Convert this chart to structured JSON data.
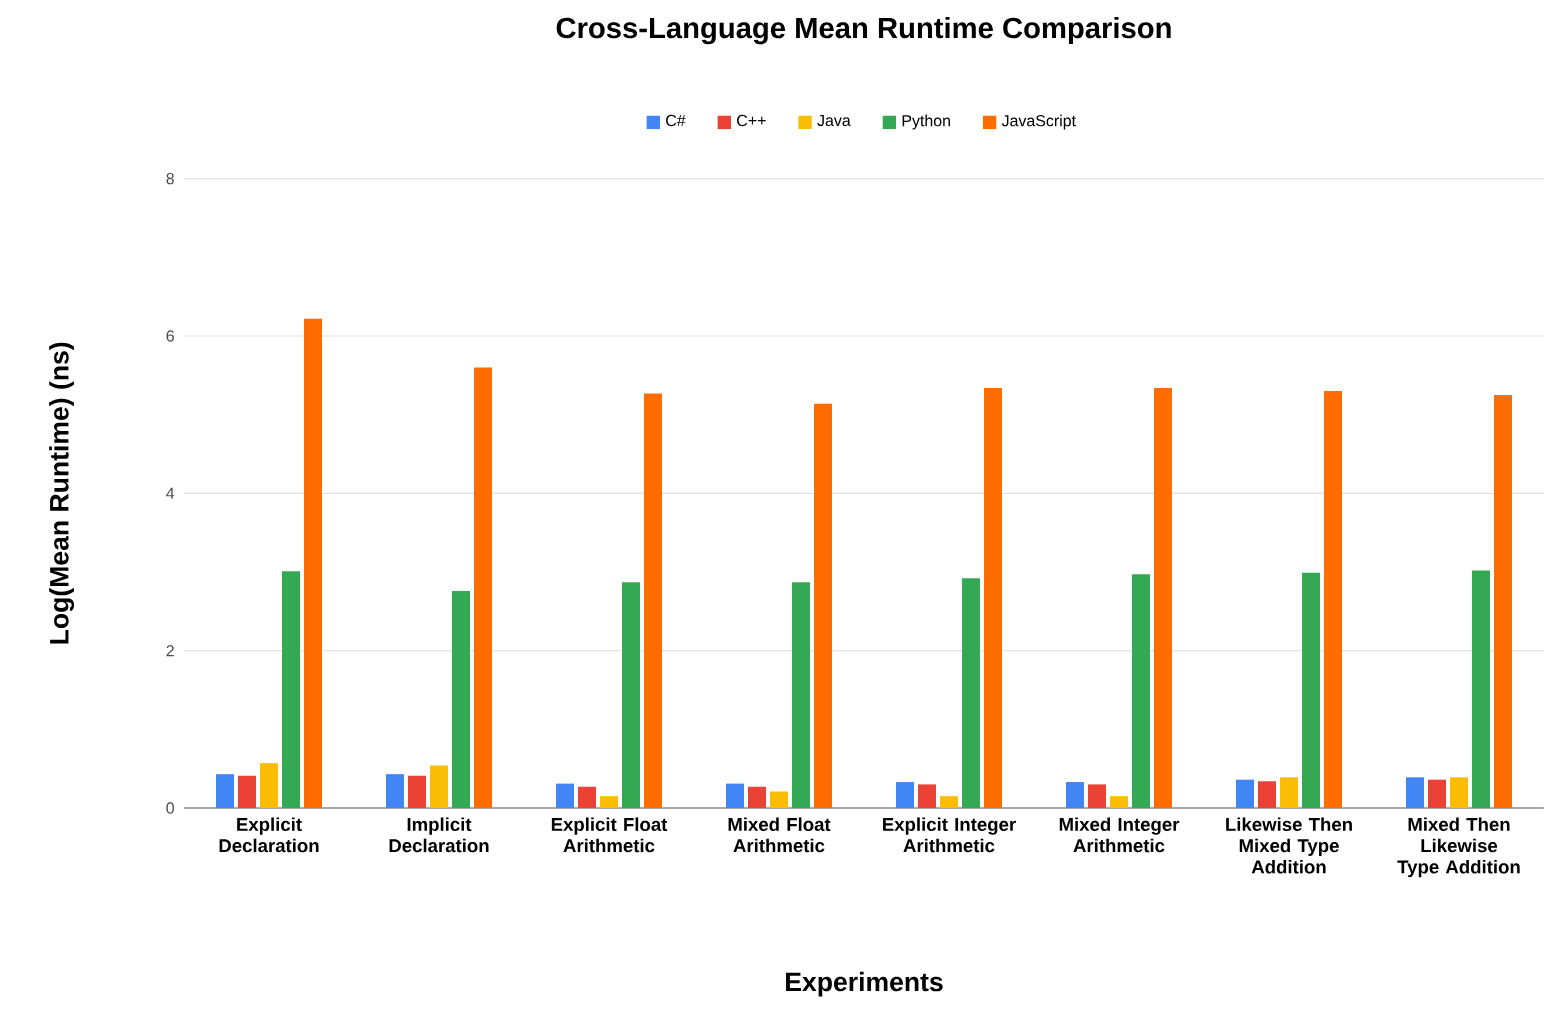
{
  "chart_data": {
    "type": "bar",
    "title": "Cross-Language Mean Runtime Comparison",
    "xlabel": "Experiments",
    "ylabel": "Log(Mean Runtime) (ns)",
    "categories": [
      "Explicit Declaration",
      "Implicit Declaration",
      "Explicit Float Arithmetic",
      "Mixed Float Arithmetic",
      "Explicit Integer Arithmetic",
      "Mixed Integer Arithmetic",
      "Likewise Then Mixed Type Addition",
      "Mixed Then Likewise Type Addition"
    ],
    "series": [
      {
        "name": "C#",
        "color": "#4285f4",
        "values": [
          0.43,
          0.43,
          0.31,
          0.31,
          0.33,
          0.33,
          0.36,
          0.39
        ]
      },
      {
        "name": "C++",
        "color": "#ea4335",
        "values": [
          0.41,
          0.41,
          0.27,
          0.27,
          0.3,
          0.3,
          0.34,
          0.36
        ]
      },
      {
        "name": "Java",
        "color": "#fbbc04",
        "values": [
          0.57,
          0.54,
          0.15,
          0.21,
          0.15,
          0.15,
          0.39,
          0.39
        ]
      },
      {
        "name": "Python",
        "color": "#34a853",
        "values": [
          3.01,
          2.76,
          2.87,
          2.87,
          2.92,
          2.97,
          2.99,
          3.02
        ]
      },
      {
        "name": "JavaScript",
        "color": "#ff6d01",
        "values": [
          6.22,
          5.6,
          5.27,
          5.14,
          5.34,
          5.34,
          5.3,
          5.25
        ]
      }
    ],
    "ylim": [
      0,
      8
    ],
    "yticks": [
      0,
      2,
      4,
      6,
      8
    ],
    "grid": "y",
    "legend": "top"
  }
}
